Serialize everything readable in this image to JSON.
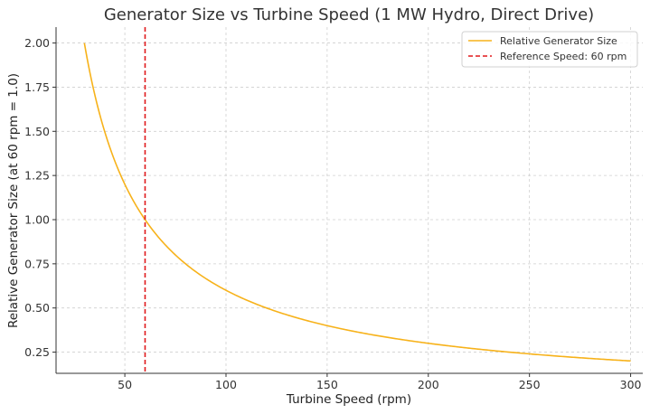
{
  "chart_data": {
    "type": "line",
    "title": "Generator Size vs Turbine Speed (1 MW Hydro, Direct Drive)",
    "xlabel": "Turbine Speed (rpm)",
    "ylabel": "Relative Generator Size (at 60 rpm = 1.0)",
    "xlim": [
      16,
      306
    ],
    "ylim": [
      0.13,
      2.09
    ],
    "x_ticks": [
      50,
      100,
      150,
      200,
      250,
      300
    ],
    "x_tick_labels": [
      "50",
      "100",
      "150",
      "200",
      "250",
      "300"
    ],
    "y_ticks": [
      0.25,
      0.5,
      0.75,
      1.0,
      1.25,
      1.5,
      1.75,
      2.0
    ],
    "y_tick_labels": [
      "0.25",
      "0.50",
      "0.75",
      "1.00",
      "1.25",
      "1.50",
      "1.75",
      "2.00"
    ],
    "grid": true,
    "legend_position": "top-right",
    "series": [
      {
        "name": "Relative Generator Size",
        "color": "#f7b21a",
        "style": "solid",
        "formula": "60 / x",
        "x_range": [
          30,
          300
        ]
      }
    ],
    "reference_lines": [
      {
        "name": "Reference Speed: 60 rpm",
        "orientation": "vertical",
        "x": 60,
        "color": "#e0191b",
        "style": "dashed"
      }
    ]
  }
}
